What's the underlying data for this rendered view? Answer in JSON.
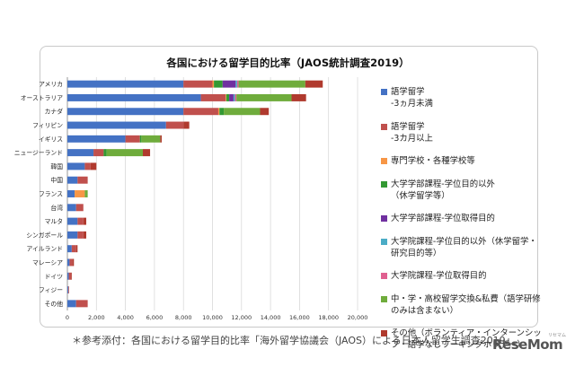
{
  "chart_data": {
    "type": "bar",
    "orientation": "horizontal",
    "stacked": true,
    "title": "各国における留学目的比率（JAOS統計調査2019）",
    "categories": [
      "アメリカ",
      "オーストラリア",
      "カナダ",
      "フィリピン",
      "イギリス",
      "ニュージーランド",
      "韓国",
      "中国",
      "フランス",
      "台湾",
      "マルタ",
      "シンガポール",
      "アイルランド",
      "マレーシア",
      "ドイツ",
      "フィジー",
      "その他"
    ],
    "xlim": [
      0,
      20000
    ],
    "xticks": [
      "0",
      "2,000",
      "4,000",
      "6,000",
      "8,000",
      "10,000",
      "12,000",
      "14,000",
      "16,000",
      "18,000",
      "20,000"
    ],
    "grid": true,
    "legend_position": "right",
    "series": [
      {
        "name": "語学留学\n-3ヵ月未満",
        "color": "#4472C4",
        "values": [
          8000,
          9200,
          8000,
          6800,
          4000,
          1800,
          1200,
          700,
          500,
          600,
          700,
          700,
          300,
          150,
          100,
          60,
          600
        ]
      },
      {
        "name": "語学留学\n-3カ月以上",
        "color": "#C0504D",
        "values": [
          2000,
          1700,
          2400,
          1200,
          1000,
          700,
          400,
          700,
          0,
          500,
          400,
          400,
          300,
          200,
          150,
          50,
          800
        ]
      },
      {
        "name": "専門学校・各種学校等",
        "color": "#F79646",
        "values": [
          100,
          50,
          80,
          0,
          0,
          0,
          0,
          0,
          700,
          0,
          0,
          0,
          0,
          0,
          0,
          0,
          0
        ]
      },
      {
        "name": "大学学部課程-学位目的以外\n（休学留学等）",
        "color": "#339933",
        "values": [
          600,
          200,
          300,
          0,
          100,
          200,
          0,
          0,
          0,
          0,
          0,
          0,
          0,
          0,
          0,
          0,
          0
        ]
      },
      {
        "name": "大学学部課程-学位取得目的",
        "color": "#7030A0",
        "values": [
          900,
          300,
          0,
          0,
          0,
          0,
          0,
          0,
          0,
          0,
          0,
          0,
          0,
          0,
          0,
          0,
          0
        ]
      },
      {
        "name": "大学院課程-学位目的以外（休学留学・研究目的等）",
        "color": "#4BACC6",
        "values": [
          100,
          100,
          0,
          0,
          0,
          0,
          0,
          0,
          0,
          0,
          0,
          0,
          0,
          0,
          0,
          0,
          0
        ]
      },
      {
        "name": "大学院課程-学位取得目的",
        "color": "#E06090",
        "values": [
          100,
          100,
          0,
          0,
          0,
          0,
          0,
          0,
          0,
          0,
          0,
          0,
          0,
          0,
          0,
          0,
          0
        ]
      },
      {
        "name": "中・学・高校留学交換&私費（語学研修のみは含まない）",
        "color": "#6FAC3C",
        "values": [
          4600,
          3800,
          2500,
          0,
          1300,
          2500,
          0,
          0,
          200,
          0,
          0,
          0,
          0,
          0,
          0,
          0,
          0
        ]
      },
      {
        "name": "その他（ボランティア・インターンシップ・語学なしワーキングホリデー）",
        "color": "#B03A2E",
        "values": [
          1200,
          1000,
          600,
          400,
          100,
          500,
          400,
          0,
          0,
          0,
          200,
          200,
          100,
          100,
          50,
          0,
          0
        ]
      }
    ]
  },
  "footnote": "＊参考添付：各国における留学目的比率「海外留学協議会（JAOS）による日本人留学生調査2019」",
  "logo": "ReseMom",
  "logo_sub": "リセマム"
}
